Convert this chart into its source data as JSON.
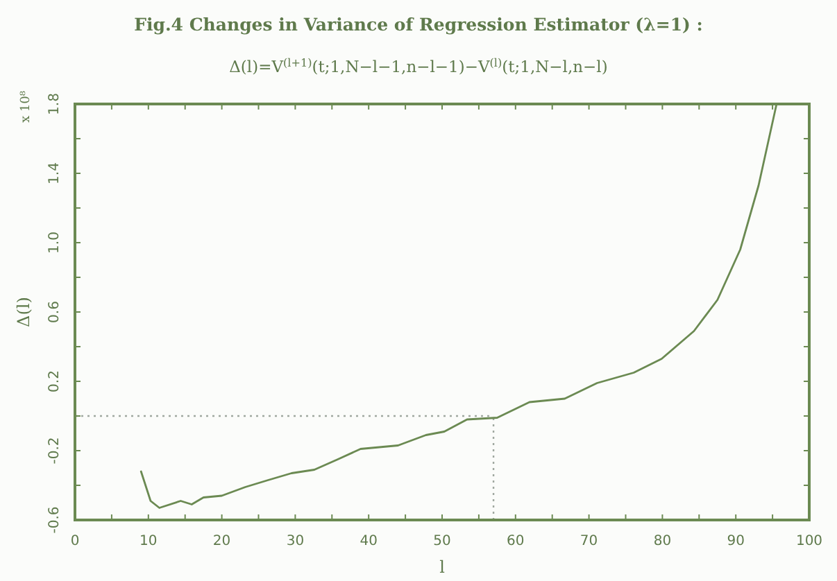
{
  "chart_data": {
    "type": "line",
    "title": "Fig.4   Changes in Variance of Regression Estimator (λ=1) :",
    "subtitle": "Δ(l)=V$^{(l+1)}$(t;1,N−l−1,n−l−1)−V$^{(l)}$(t;1,N−l,n−l)",
    "xlabel": "l",
    "ylabel": "Δ(l)",
    "annotations": [
      "x 10⁸"
    ],
    "x": [
      9.0,
      10.3,
      11.5,
      14.4,
      15.9,
      17.5,
      20,
      23.2,
      26.3,
      29.5,
      32.6,
      35.8,
      38.9,
      44,
      47.8,
      50.3,
      53.4,
      57.5,
      61.9,
      66.7,
      71.1,
      76.1,
      79.9,
      84.3,
      87.5,
      90.6,
      93.1,
      95.5
    ],
    "series": [
      {
        "color": "#6b8a52",
        "values": [
          -0.32,
          -0.49,
          -0.53,
          -0.49,
          -0.51,
          -0.47,
          -0.46,
          -0.41,
          -0.37,
          -0.33,
          -0.31,
          -0.25,
          -0.19,
          -0.17,
          -0.11,
          -0.09,
          -0.02,
          -0.01,
          0.08,
          0.1,
          0.19,
          0.25,
          0.33,
          0.49,
          0.67,
          0.96,
          1.33,
          1.79
        ]
      }
    ],
    "xlim": [
      0,
      100
    ],
    "ylim": [
      -0.6,
      1.8
    ],
    "xticks": [
      0,
      {
        "value": 5,
        "label": null
      },
      10,
      {
        "value": 15,
        "label": null
      },
      20,
      {
        "value": 25,
        "label": null
      },
      30,
      {
        "value": 35,
        "label": null
      },
      40,
      {
        "value": 45,
        "label": null
      },
      50,
      {
        "value": 55,
        "label": null
      },
      60,
      {
        "value": 65,
        "label": null
      },
      70,
      {
        "value": 75,
        "label": null
      },
      80,
      {
        "value": 85,
        "label": null
      },
      90,
      {
        "value": 95,
        "label": null
      },
      100
    ],
    "yticks": [
      -0.6,
      {
        "value": -0.4,
        "label": null
      },
      -0.2,
      {
        "value": 0,
        "label": null
      },
      0.2,
      {
        "value": 0.4,
        "label": null
      },
      0.6,
      {
        "value": 0.8,
        "label": null
      },
      {
        "value": 1,
        "label": "1.0"
      },
      {
        "value": 1.2,
        "label": null
      },
      1.4,
      {
        "value": 1.6,
        "label": null
      },
      1.8
    ],
    "ref_lines": [
      {
        "axis": "y",
        "value": 0,
        "color": "#a0a8a0",
        "line_style": "dotted"
      },
      {
        "axis": "x",
        "value": 57,
        "color": "#a0a8a0",
        "line_style": "dotted"
      }
    ],
    "grid": false,
    "marker": "none",
    "line_style": "solid"
  }
}
